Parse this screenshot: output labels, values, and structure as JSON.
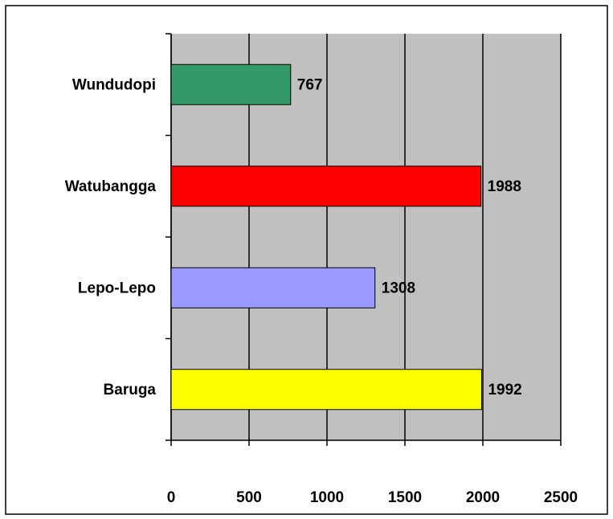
{
  "chart_data": {
    "type": "bar",
    "orientation": "horizontal",
    "categories": [
      "Wundudopi",
      "Watubangga",
      "Lepo-Lepo",
      "Baruga"
    ],
    "values": [
      767,
      1988,
      1308,
      1992
    ],
    "colors": [
      "#339966",
      "#ff0000",
      "#9999ff",
      "#ffff00"
    ],
    "xlim": [
      0,
      2500
    ],
    "xticks": [
      0,
      500,
      1000,
      1500,
      2000,
      2500
    ],
    "grid": true,
    "plot_background": "#c0c0c0"
  }
}
